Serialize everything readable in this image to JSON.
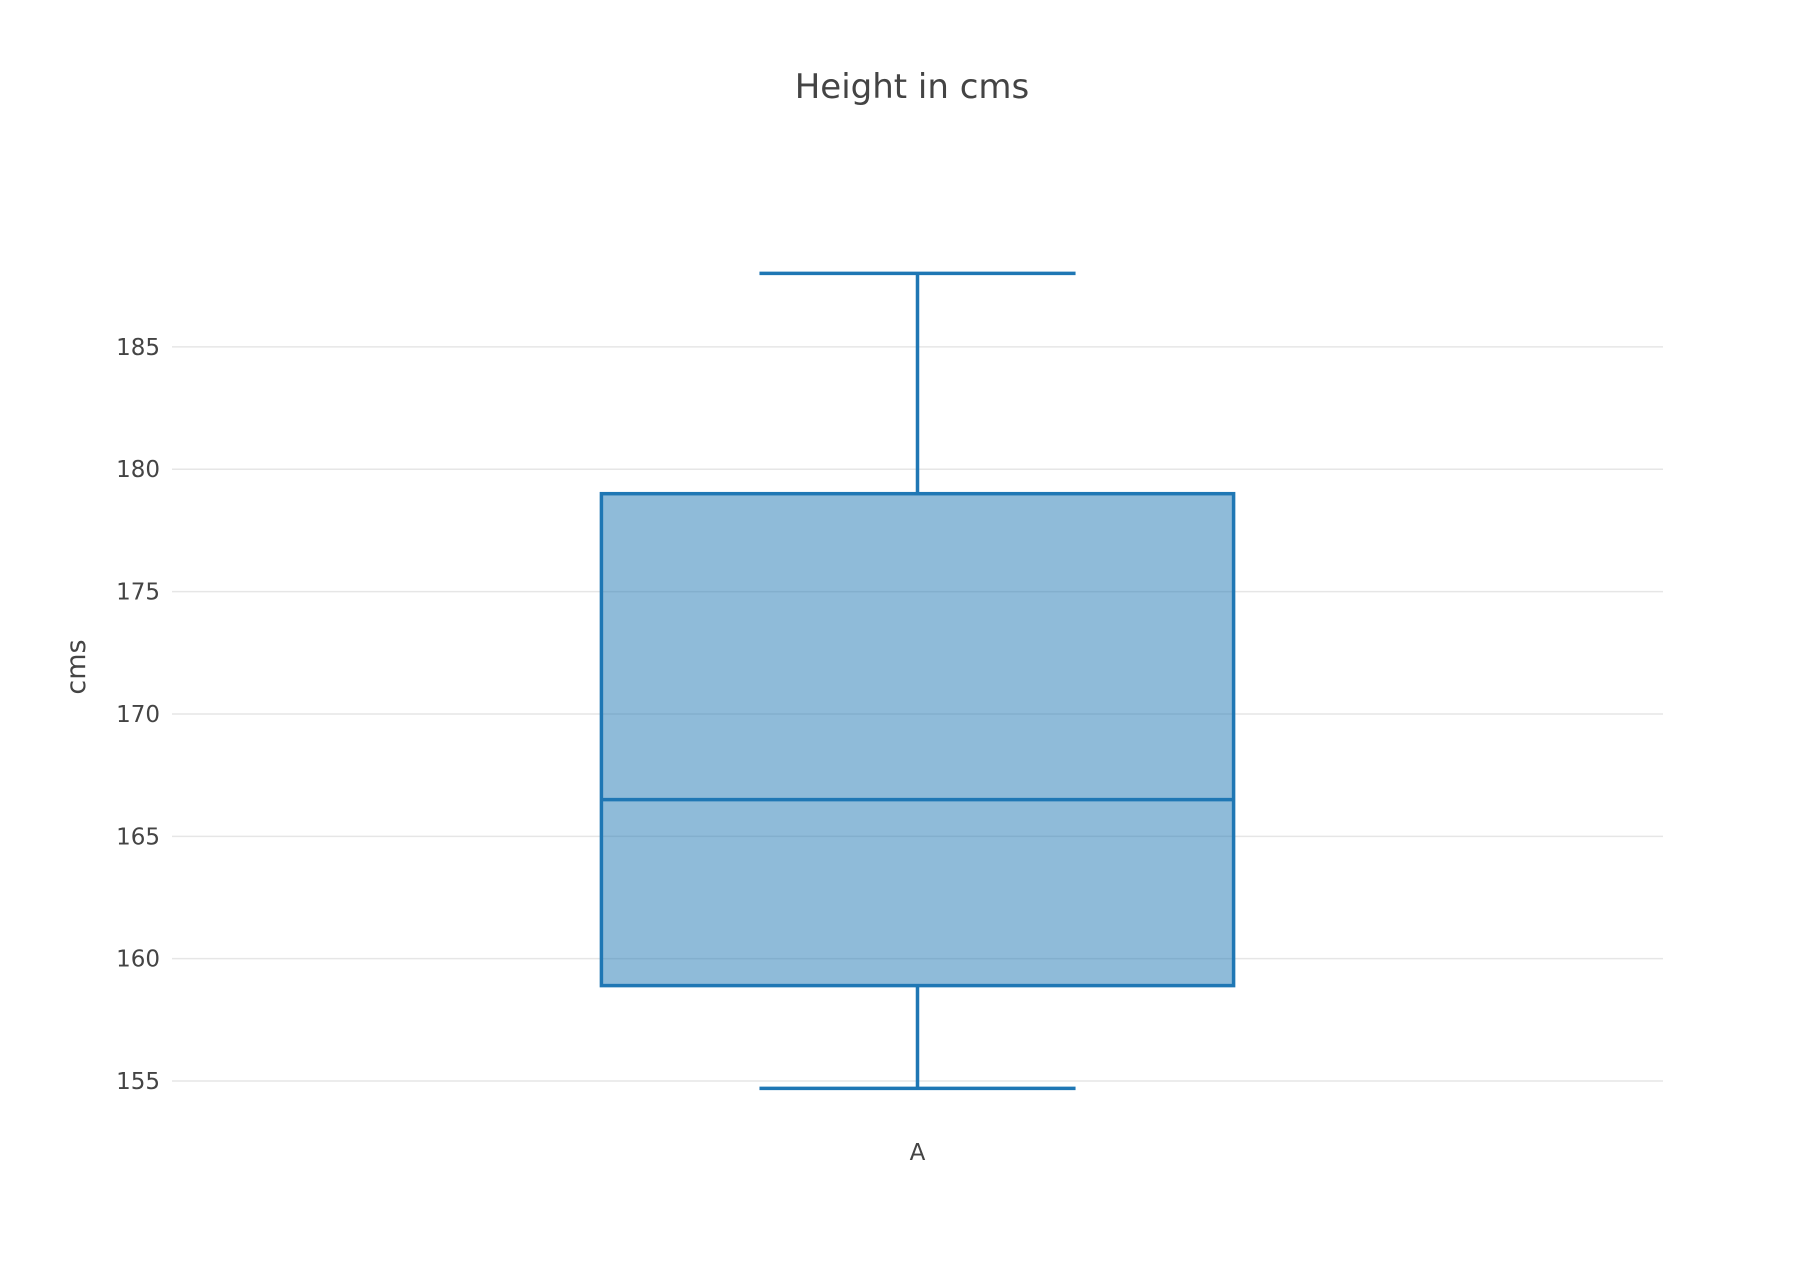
{
  "chart_data": {
    "type": "box",
    "title": "Height in cms",
    "xlabel": "",
    "ylabel": "cms",
    "categories": [
      "A"
    ],
    "ylim": [
      153.0,
      191.0
    ],
    "yticks": [
      155,
      160,
      165,
      170,
      175,
      180,
      185
    ],
    "grid": true,
    "series": [
      {
        "category": "A",
        "min": 154.7,
        "q1": 158.9,
        "median": 166.5,
        "q3": 179.0,
        "max": 188.0
      }
    ],
    "colors": {
      "line": "#1f77b4",
      "fill": "#1f77b4",
      "fill_opacity": 0.5,
      "grid": "#e6e6e6",
      "text": "#444444"
    }
  }
}
